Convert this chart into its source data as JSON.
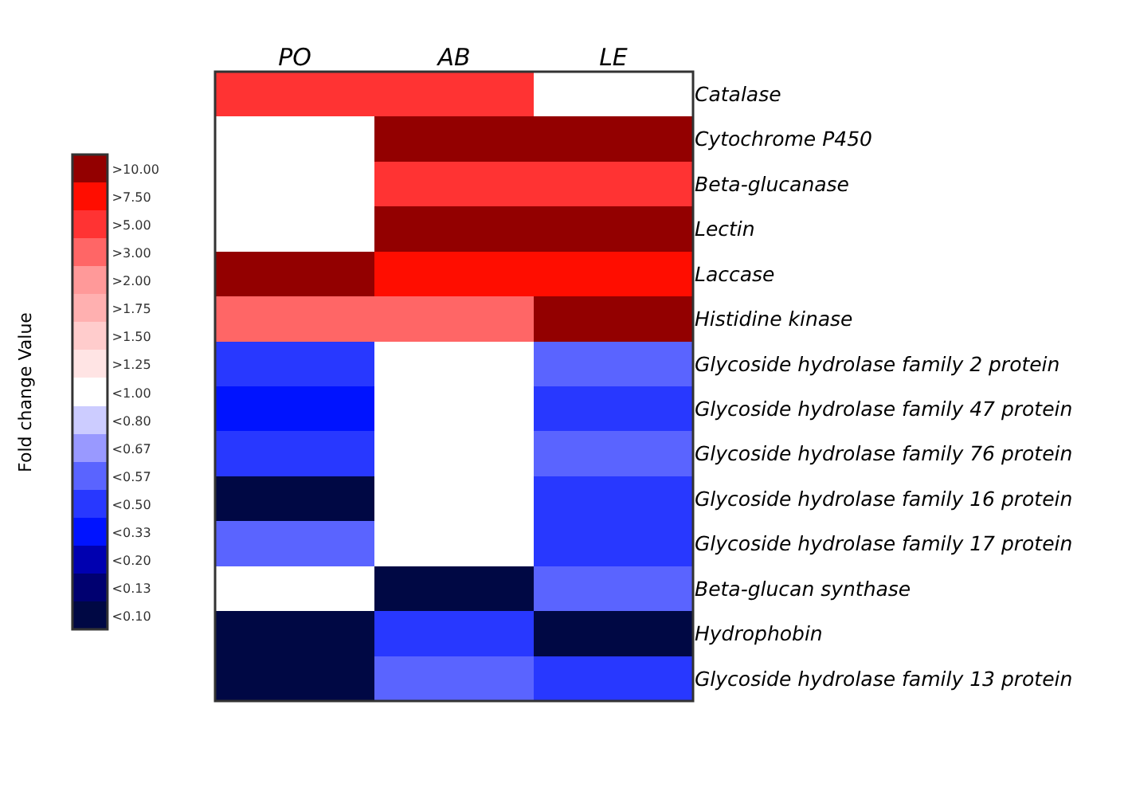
{
  "chart_data": {
    "type": "heatmap",
    "clabel": "Fold change Value",
    "categories": [
      "PO",
      "AB",
      "LE"
    ],
    "y_categories": [
      "Catalase",
      "Cytochrome P450",
      "Beta-glucanase",
      "Lectin",
      "Laccase",
      "Histidine kinase",
      "Glycoside hydrolase family 2 protein",
      "Glycoside hydrolase family 47 protein",
      "Glycoside hydrolase family 76 protein",
      "Glycoside hydrolase family 16 protein",
      "Glycoside hydrolase family 17 protein",
      "Beta-glucan synthase",
      "Hydrophobin",
      "Glycoside hydrolase family 13 protein"
    ],
    "cells": [
      [
        14,
        14,
        8
      ],
      [
        8,
        16,
        16
      ],
      [
        8,
        14,
        14
      ],
      [
        8,
        16,
        16
      ],
      [
        16,
        15,
        15
      ],
      [
        13,
        13,
        16
      ],
      [
        4,
        8,
        5
      ],
      [
        3,
        8,
        4
      ],
      [
        4,
        8,
        5
      ],
      [
        0,
        8,
        4
      ],
      [
        5,
        8,
        4
      ],
      [
        8,
        0,
        5
      ],
      [
        0,
        4,
        0
      ],
      [
        0,
        5,
        4
      ]
    ],
    "colors": [
      "#000844",
      "#000070",
      "#0000b0",
      "#0013ff",
      "#2838ff",
      "#5a64ff",
      "#9999ff",
      "#ccccff",
      "#ffffff",
      "#ffe4e4",
      "#ffcccc",
      "#ffb0b0",
      "#ff9999",
      "#ff6666",
      "#ff3333",
      "#ff0d00",
      "#930000"
    ],
    "clim": [
      -0.5,
      16.5
    ],
    "cticks": [
      {
        "value": 0,
        "label": "<0.10"
      },
      {
        "value": 1,
        "label": "<0.13"
      },
      {
        "value": 2,
        "label": "<0.20"
      },
      {
        "value": 3,
        "label": "<0.33"
      },
      {
        "value": 4,
        "label": "<0.50"
      },
      {
        "value": 5,
        "label": "<0.57"
      },
      {
        "value": 6,
        "label": "<0.67"
      },
      {
        "value": 7,
        "label": "<0.80"
      },
      {
        "value": 8,
        "label": "<1.00"
      },
      {
        "value": 9,
        "label": ">1.25"
      },
      {
        "value": 10,
        "label": ">1.50"
      },
      {
        "value": 11,
        "label": ">1.75"
      },
      {
        "value": 12,
        "label": ">2.00"
      },
      {
        "value": 13,
        "label": ">3.00"
      },
      {
        "value": 14,
        "label": ">5.00"
      },
      {
        "value": 15,
        "label": ">7.50"
      },
      {
        "value": 16,
        "label": ">10.00"
      }
    ]
  }
}
